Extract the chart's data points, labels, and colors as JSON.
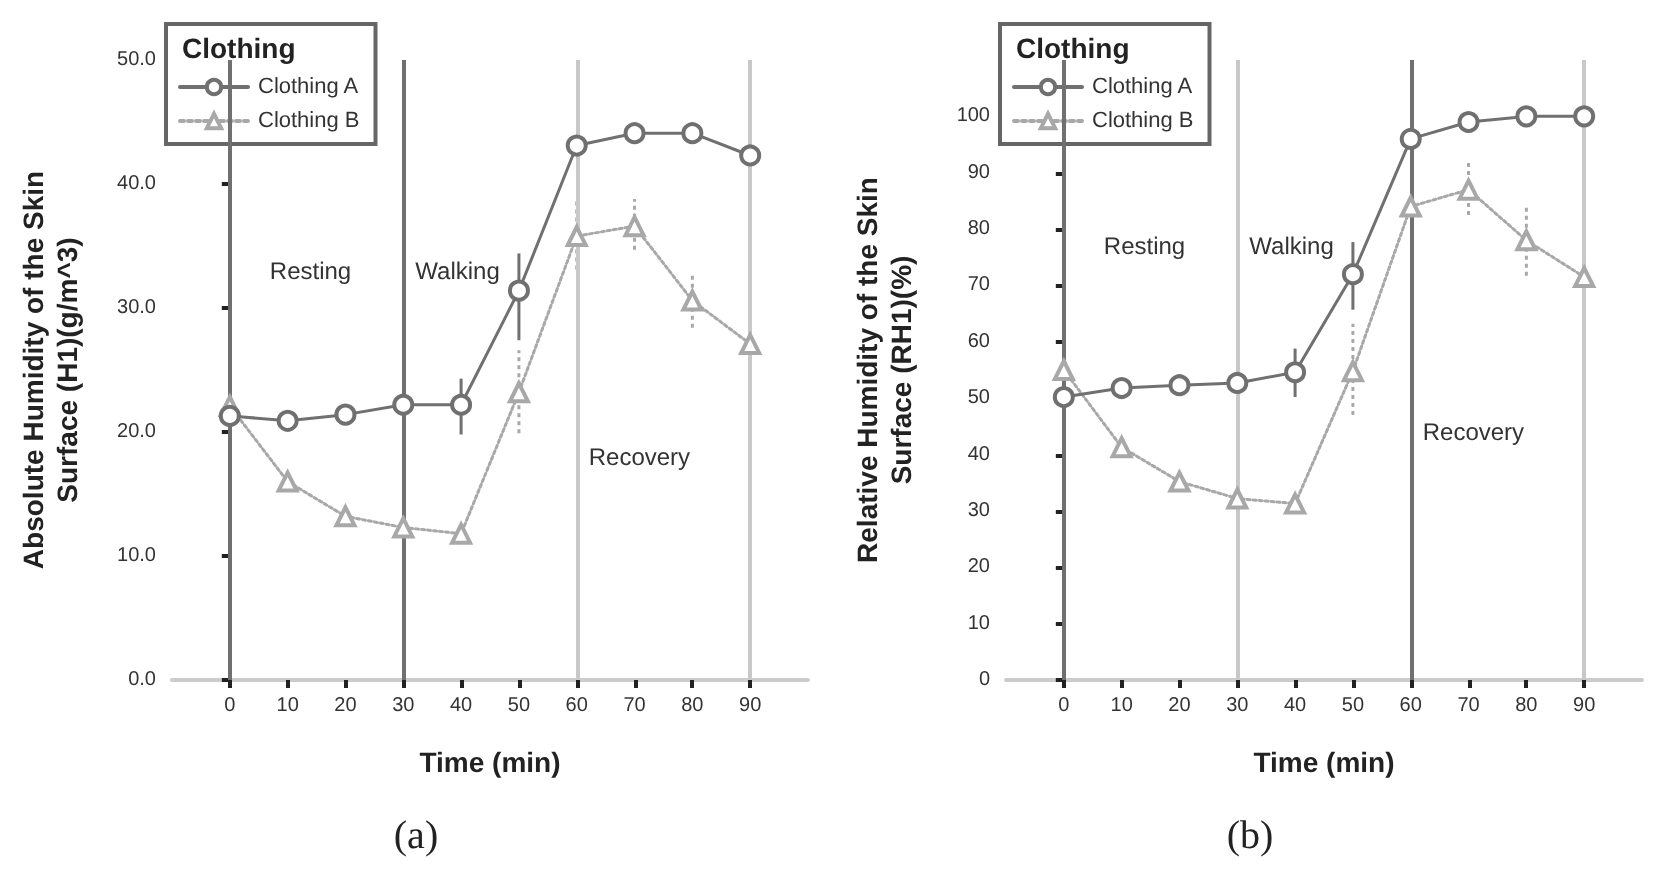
{
  "chart_data": [
    {
      "type": "line",
      "xlabel": "Time (min)",
      "ylabel": "Absolute Humidity of the Skin\nSurface (H1)(g/m^3)",
      "legend_title": "Clothing",
      "legend": "top left",
      "grid": false,
      "x": [
        0,
        10,
        20,
        30,
        40,
        50,
        60,
        70,
        80,
        90
      ],
      "series": [
        {
          "name": "Clothing A",
          "color": "#707070",
          "marker": "circle",
          "line_style": "solid",
          "values": [
            21.3,
            20.9,
            21.4,
            22.2,
            22.2,
            31.4,
            43.1,
            44.1,
            44.1,
            42.3
          ],
          "errors": [
            null,
            null,
            null,
            null,
            [
              19.8,
              24.3
            ],
            [
              27.4,
              34.4
            ],
            null,
            null,
            null,
            null
          ]
        },
        {
          "name": "Clothing B",
          "color": "#a8a8a8",
          "marker": "triangle",
          "line_style": "dotted",
          "values": [
            22.1,
            16.0,
            13.2,
            12.3,
            11.8,
            23.2,
            35.8,
            36.6,
            30.6,
            27.1
          ],
          "errors": [
            null,
            null,
            null,
            null,
            null,
            [
              19.9,
              26.6
            ],
            [
              33.1,
              38.7
            ],
            [
              34.7,
              38.8
            ],
            [
              28.4,
              32.7
            ],
            [
              24.2,
              30.0
            ]
          ]
        }
      ],
      "xlim": [
        -10,
        100
      ],
      "xticks": [
        0,
        10,
        20,
        30,
        40,
        50,
        60,
        70,
        80,
        90
      ],
      "ylim": [
        0,
        50
      ],
      "yticks": [
        {
          "value": 0,
          "label": "0.0"
        },
        {
          "value": 10,
          "label": "10.0"
        },
        {
          "value": 20,
          "label": "20.0"
        },
        {
          "value": 30,
          "label": "30.0"
        },
        {
          "value": 40,
          "label": "40.0"
        },
        {
          "value": 50,
          "label": "50.0"
        }
      ],
      "ref_lines": [
        {
          "axis": "x",
          "value": 0,
          "color": "#707070"
        },
        {
          "axis": "x",
          "value": 30,
          "color": "#707070"
        },
        {
          "axis": "x",
          "value": 60,
          "color": "#c8c8c8"
        },
        {
          "axis": "x",
          "value": 90,
          "color": "#c8c8c8"
        }
      ],
      "annotations": [
        "Resting",
        "Walking",
        "Recovery",
        "(a)"
      ]
    },
    {
      "type": "line",
      "xlabel": "Time (min)",
      "ylabel": "Relative Humidity of the Skin\nSurface (RH1)(%)",
      "legend_title": "Clothing",
      "legend": "top left",
      "grid": false,
      "x": [
        0,
        10,
        20,
        30,
        40,
        50,
        60,
        70,
        80,
        90
      ],
      "series": [
        {
          "name": "Clothing A",
          "color": "#707070",
          "marker": "circle",
          "line_style": "solid",
          "values": [
            50.2,
            51.8,
            52.3,
            52.7,
            54.6,
            72.0,
            96.0,
            99.0,
            100,
            100
          ],
          "errors": [
            null,
            null,
            null,
            null,
            [
              50.2,
              58.8
            ],
            [
              65.7,
              77.7
            ],
            null,
            null,
            null,
            null
          ]
        },
        {
          "name": "Clothing B",
          "color": "#a8a8a8",
          "marker": "triangle",
          "line_style": "dotted",
          "values": [
            55.0,
            41.3,
            35.2,
            32.2,
            31.3,
            54.8,
            84.0,
            87.0,
            78.0,
            71.5
          ],
          "errors": [
            null,
            null,
            null,
            null,
            null,
            [
              47.0,
              63.2
            ],
            null,
            [
              82.5,
              92.2
            ],
            [
              71.7,
              84.3
            ],
            [
              63.2,
              77.7
            ]
          ]
        }
      ],
      "xlim": [
        -10,
        100
      ],
      "xticks": [
        0,
        10,
        20,
        30,
        40,
        50,
        60,
        70,
        80,
        90
      ],
      "ylim": [
        0,
        110
      ],
      "yticks": [
        0,
        10,
        20,
        30,
        40,
        50,
        60,
        70,
        80,
        90,
        100
      ],
      "ref_lines": [
        {
          "axis": "x",
          "value": 0,
          "color": "#707070"
        },
        {
          "axis": "x",
          "value": 30,
          "color": "#c8c8c8"
        },
        {
          "axis": "x",
          "value": 60,
          "color": "#707070"
        },
        {
          "axis": "x",
          "value": 90,
          "color": "#c8c8c8"
        }
      ],
      "annotations": [
        "Resting",
        "Walking",
        "Recovery",
        "(b)"
      ]
    }
  ]
}
